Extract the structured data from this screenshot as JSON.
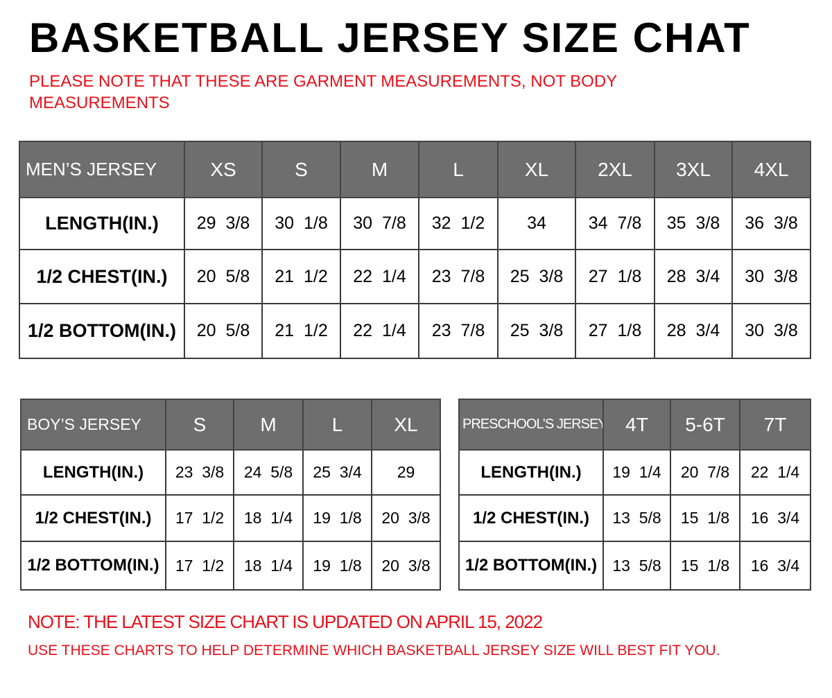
{
  "title": "BASKETBALL JERSEY SIZE CHAT",
  "notice_line1": "PLEASE NOTE THAT THESE ARE GARMENT MEASUREMENTS, NOT BODY",
  "notice_line2": "MEASUREMENTS",
  "colors": {
    "header_bg": "#6e6e6e",
    "accent_red": "#e8101a"
  },
  "tables": {
    "mens": {
      "label": "MEN’S JERSEY",
      "sizes": [
        "XS",
        "S",
        "M",
        "L",
        "XL",
        "2XL",
        "3XL",
        "4XL"
      ],
      "rows": [
        {
          "label": "LENGTH(IN.)",
          "values": [
            "29  3/8",
            "30  1/8",
            "30  7/8",
            "32  1/2",
            "34",
            "34  7/8",
            "35  3/8",
            "36  3/8"
          ]
        },
        {
          "label": "1/2  CHEST(IN.)",
          "values": [
            "20  5/8",
            "21  1/2",
            "22  1/4",
            "23  7/8",
            "25  3/8",
            "27  1/8",
            "28  3/4",
            "30  3/8"
          ]
        },
        {
          "label": "1/2  BOTTOM(IN.)",
          "values": [
            "20  5/8",
            "21  1/2",
            "22  1/4",
            "23  7/8",
            "25  3/8",
            "27  1/8",
            "28  3/4",
            "30  3/8"
          ]
        }
      ]
    },
    "boys": {
      "label": "BOY’S JERSEY",
      "sizes": [
        "S",
        "M",
        "L",
        "XL"
      ],
      "rows": [
        {
          "label": "LENGTH(IN.)",
          "values": [
            "23  3/8",
            "24  5/8",
            "25  3/4",
            "29"
          ]
        },
        {
          "label": "1/2  CHEST(IN.)",
          "values": [
            "17  1/2",
            "18  1/4",
            "19  1/8",
            "20  3/8"
          ]
        },
        {
          "label": "1/2  BOTTOM(IN.)",
          "values": [
            "17  1/2",
            "18  1/4",
            "19  1/8",
            "20  3/8"
          ]
        }
      ]
    },
    "preschool": {
      "label": "PRESCHOOL’S JERSEY",
      "sizes": [
        "4T",
        "5-6T",
        "7T"
      ],
      "rows": [
        {
          "label": "LENGTH(IN.)",
          "values": [
            "19  1/4",
            "20  7/8",
            "22  1/4"
          ]
        },
        {
          "label": "1/2  CHEST(IN.)",
          "values": [
            "13  5/8",
            "15  1/8",
            "16  3/4"
          ]
        },
        {
          "label": "1/2  BOTTOM(IN.)",
          "values": [
            "13  5/8",
            "15  1/8",
            "16  3/4"
          ]
        }
      ]
    }
  },
  "footer_note1": "NOTE: THE LATEST SIZE CHART IS UPDATED ON APRIL 15, 2022",
  "footer_note2": "USE THESE CHARTS TO HELP DETERMINE WHICH  BASKETBALL JERSEY  SIZE WILL BEST FIT YOU."
}
